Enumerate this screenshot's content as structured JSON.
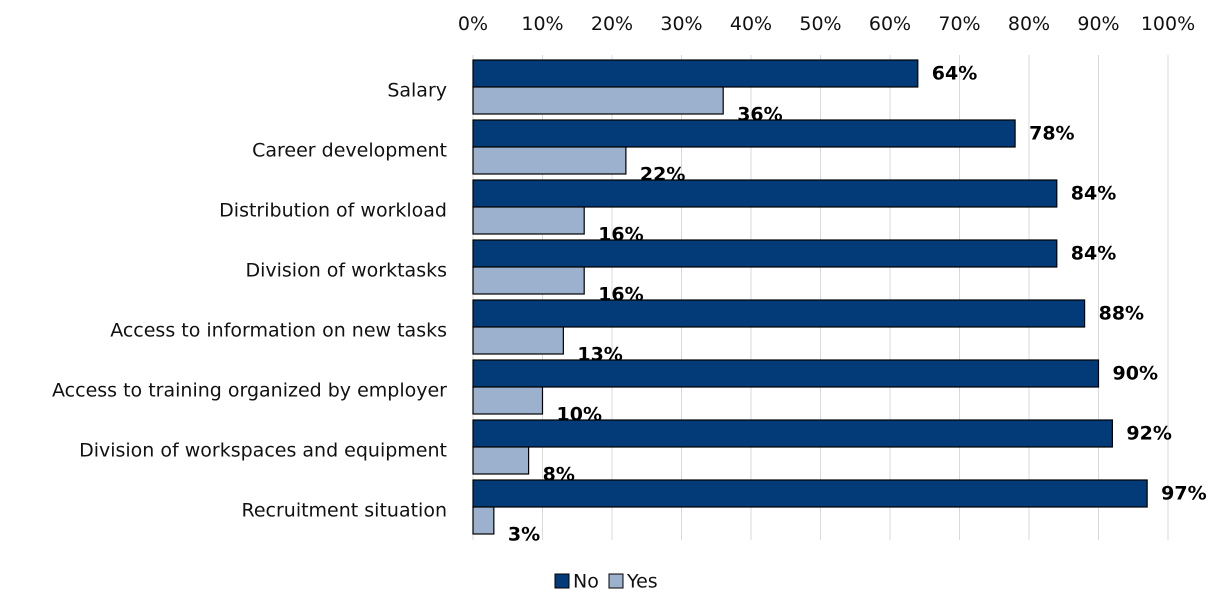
{
  "chart_data": {
    "type": "bar",
    "orientation": "horizontal",
    "categories": [
      "Salary",
      "Career development",
      "Distribution of workload",
      "Division of worktasks",
      "Access to information on new tasks",
      "Access to training organized by employer",
      "Division of workspaces and equipment",
      "Recruitment situation"
    ],
    "series": [
      {
        "name": "No",
        "color": "#033A78",
        "values": [
          64,
          78,
          84,
          84,
          88,
          90,
          92,
          97
        ],
        "labels": [
          "64%",
          "78%",
          "84%",
          "84%",
          "88%",
          "90%",
          "92%",
          "97%"
        ]
      },
      {
        "name": "Yes",
        "color": "#9BB1CD",
        "values": [
          36,
          22,
          16,
          16,
          13,
          10,
          8,
          3
        ],
        "labels": [
          "36%",
          "22%",
          "16%",
          "16%",
          "13%",
          "10%",
          "8%",
          "3%"
        ]
      }
    ],
    "x_ticks": [
      "0%",
      "10%",
      "20%",
      "30%",
      "40%",
      "50%",
      "60%",
      "70%",
      "80%",
      "90%",
      "100%"
    ],
    "xlim": [
      0,
      100
    ],
    "x_axis_position": "top",
    "grid": true,
    "legend_position": "bottom-center"
  }
}
